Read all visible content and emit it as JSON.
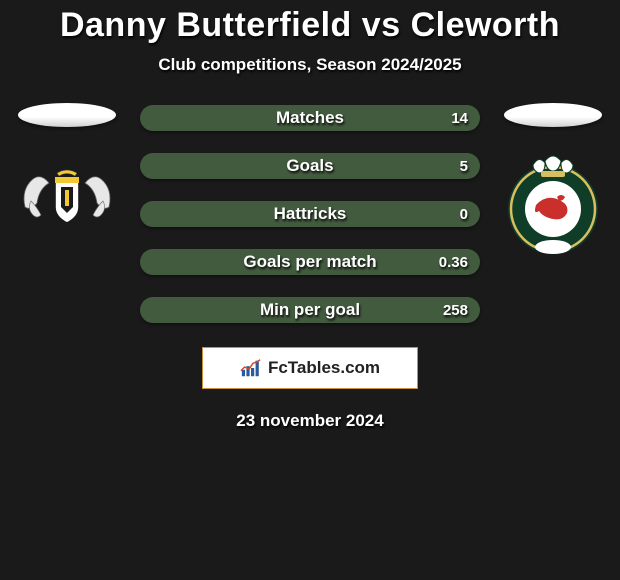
{
  "title": {
    "player1": "Danny Butterfield",
    "vs": "vs",
    "player2": "Cleworth"
  },
  "subtitle": "Club competitions, Season 2024/2025",
  "stats": {
    "bar_bg_color": "#425a3e",
    "fill_color": "#9f6635",
    "rows": [
      {
        "label": "Matches",
        "left": "",
        "right": "14",
        "fill_pct": 0
      },
      {
        "label": "Goals",
        "left": "",
        "right": "5",
        "fill_pct": 0
      },
      {
        "label": "Hattricks",
        "left": "",
        "right": "0",
        "fill_pct": 0
      },
      {
        "label": "Goals per match",
        "left": "",
        "right": "0.36",
        "fill_pct": 0
      },
      {
        "label": "Min per goal",
        "left": "",
        "right": "258",
        "fill_pct": 0
      }
    ]
  },
  "logo": {
    "text": "FcTables.com"
  },
  "date": "23 november 2024",
  "crest_left": {
    "shield_bg": "#ffffff",
    "shield_stroke": "#000000",
    "accent": "#f2c935",
    "wing_fill": "#e7e7e7"
  },
  "crest_right": {
    "outer": "#0f3d28",
    "ring": "#d9be60",
    "center": "#ffffff",
    "dragon": "#c9302c",
    "feathers": "#ffffff"
  }
}
